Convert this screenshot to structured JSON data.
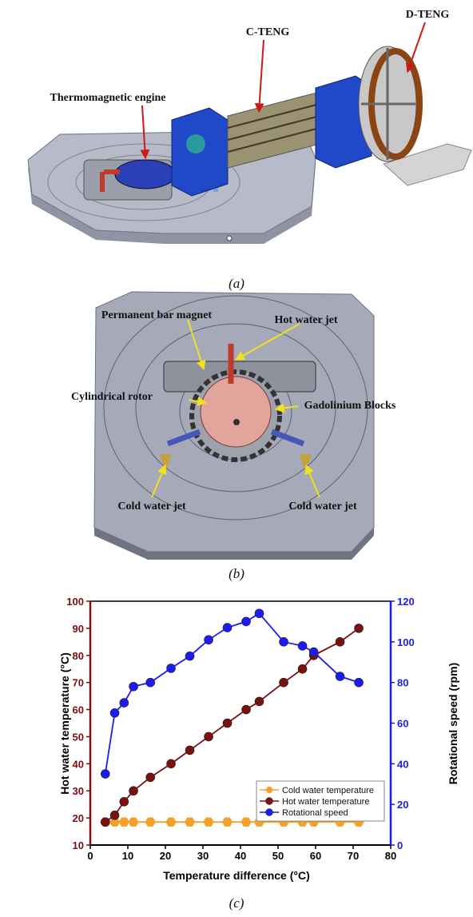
{
  "panel_a": {
    "labels": [
      "D-TENG",
      "C-TENG",
      "Thermomagnetic engine"
    ],
    "caption": "(a)"
  },
  "panel_b": {
    "labels": [
      "Permanent bar magnet",
      "Hot water jet",
      "Cylindrical rotor",
      "Gadolinium Blocks",
      "Cold water jet",
      "Cold water jet"
    ],
    "caption": "(b)"
  },
  "panel_c": {
    "caption": "(c)"
  },
  "chart_data": {
    "type": "line",
    "x_label": "Temperature difference (°C)",
    "y_label": "Hot water temperature (°C)",
    "y2_label": "Rotational speed (rpm)",
    "x": [
      4,
      6.5,
      9,
      11.5,
      16,
      21.5,
      26.5,
      31.5,
      36.5,
      41.5,
      45,
      51.5,
      56.5,
      59.5,
      66.5,
      71.5
    ],
    "series": [
      {
        "name": "Cold water temperature",
        "color": "#f5a02a",
        "marker": "hexagon",
        "values": [
          18.5,
          18.5,
          18.5,
          18.5,
          18.5,
          18.5,
          18.5,
          18.5,
          18.5,
          18.5,
          18.5,
          18.5,
          18.5,
          18.5,
          18.5,
          18.5
        ]
      },
      {
        "name": "Hot water temperature",
        "color": "#7a1010",
        "marker": "circle",
        "values": [
          18.5,
          21,
          26,
          30,
          35,
          40,
          45,
          50,
          55,
          60,
          63,
          70,
          75,
          80,
          85,
          90
        ]
      },
      {
        "name": "Rotational speed",
        "color": "#1c1cf0",
        "marker": "circle",
        "axis": "y2",
        "values": [
          35,
          65,
          70,
          78,
          80,
          87,
          93,
          101,
          107,
          110,
          114,
          100,
          98,
          95,
          83,
          80
        ]
      }
    ],
    "xlim": [
      0,
      80
    ],
    "xticks": [
      0,
      10,
      20,
      30,
      40,
      50,
      60,
      70,
      80
    ],
    "ylim": [
      10,
      100
    ],
    "yticks": [
      10,
      20,
      30,
      40,
      50,
      60,
      70,
      80,
      90,
      100
    ],
    "y2lim": [
      0,
      120
    ],
    "y2ticks": [
      0,
      20,
      40,
      60,
      80,
      100,
      120
    ],
    "y_axis_color": "#7a1010",
    "y2_axis_color": "#1c1cf0",
    "legend": "lower-right"
  }
}
